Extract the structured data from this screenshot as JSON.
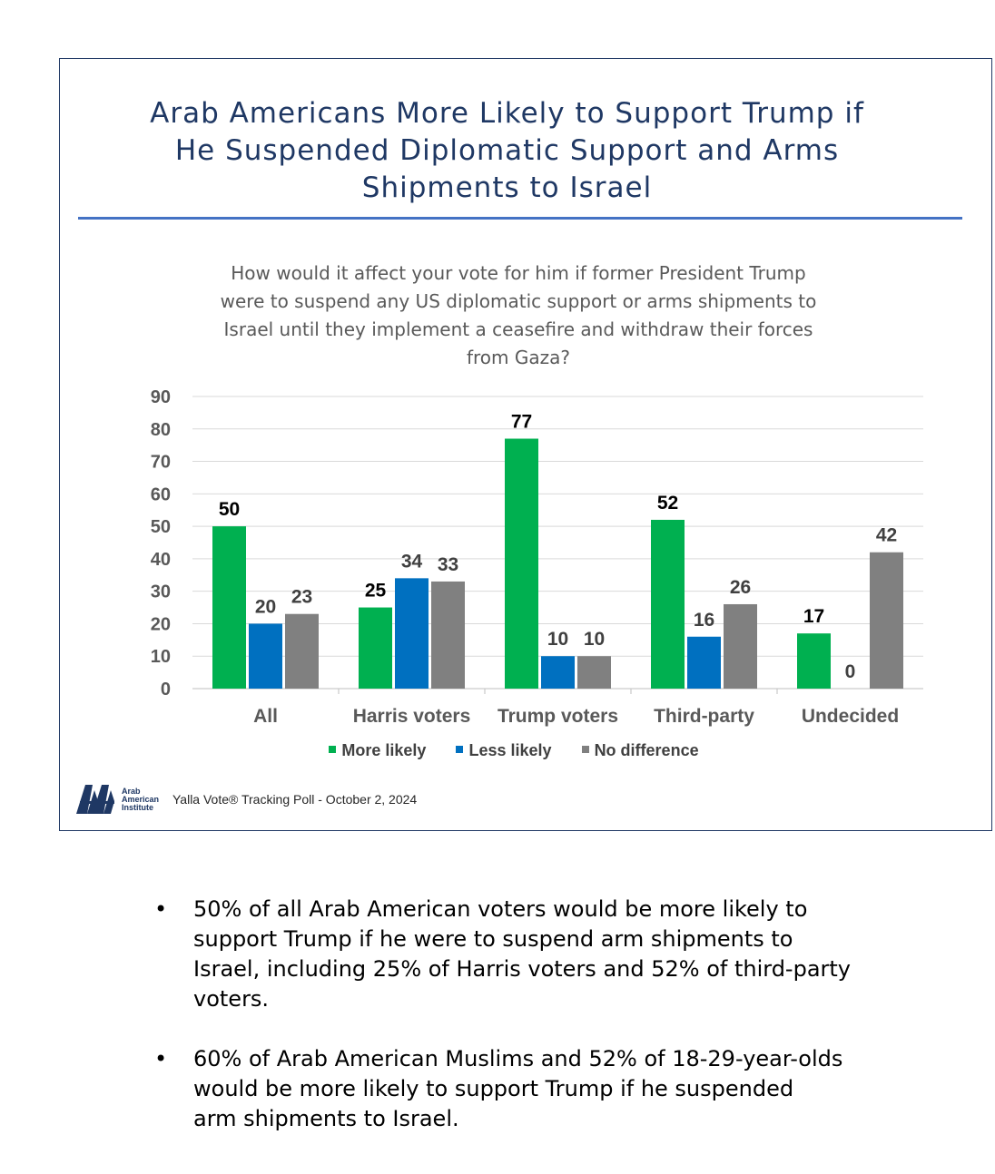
{
  "title_lines": [
    "Arab Americans More Likely to Support Trump if",
    "He Suspended Diplomatic Support and Arms",
    "Shipments to Israel"
  ],
  "question_lines": [
    "How would it affect your vote for him if former President Trump",
    "were to suspend any US diplomatic support or arms shipments to",
    "Israel until they implement a ceasefire and withdraw their forces",
    "from Gaza?"
  ],
  "chart_data": {
    "type": "bar",
    "title": "How would it affect your vote for him if former President Trump were to suspend any US diplomatic support or arms shipments to Israel until they implement a ceasefire and withdraw their forces from Gaza?",
    "categories": [
      "All",
      "Harris voters",
      "Trump voters",
      "Third-party",
      "Undecided"
    ],
    "series": [
      {
        "name": "More likely",
        "color": "#00b050",
        "values": [
          50,
          25,
          77,
          52,
          17
        ]
      },
      {
        "name": "Less likely",
        "color": "#0070c0",
        "values": [
          20,
          34,
          10,
          16,
          0
        ]
      },
      {
        "name": "No difference",
        "color": "#808080",
        "values": [
          23,
          33,
          10,
          26,
          42
        ]
      }
    ],
    "ylim": [
      0,
      90
    ],
    "yticks": [
      0,
      10,
      20,
      30,
      40,
      50,
      60,
      70,
      80,
      90
    ],
    "xlabel": "",
    "ylabel": "",
    "grid": true,
    "legend_position": "bottom"
  },
  "legend": {
    "more_likely": "More likely",
    "less_likely": "Less likely",
    "no_difference": "No difference"
  },
  "footer": {
    "logo_text_lines": [
      "Arab",
      "American",
      "Institute"
    ],
    "source": "Yalla Vote® Tracking Poll - October 2, 2024"
  },
  "bullets": [
    {
      "symbol": "•",
      "lines": [
        "50% of all Arab American voters would be more likely to",
        "support Trump if he were to suspend arm shipments to",
        "Israel, including 25% of Harris voters and 52% of third-party",
        "voters."
      ]
    },
    {
      "symbol": "•",
      "lines": [
        "60% of Arab American Muslims and 52% of 18-29-year-olds",
        "would be more likely to support Trump if he suspended",
        "arm shipments to Israel."
      ]
    }
  ]
}
